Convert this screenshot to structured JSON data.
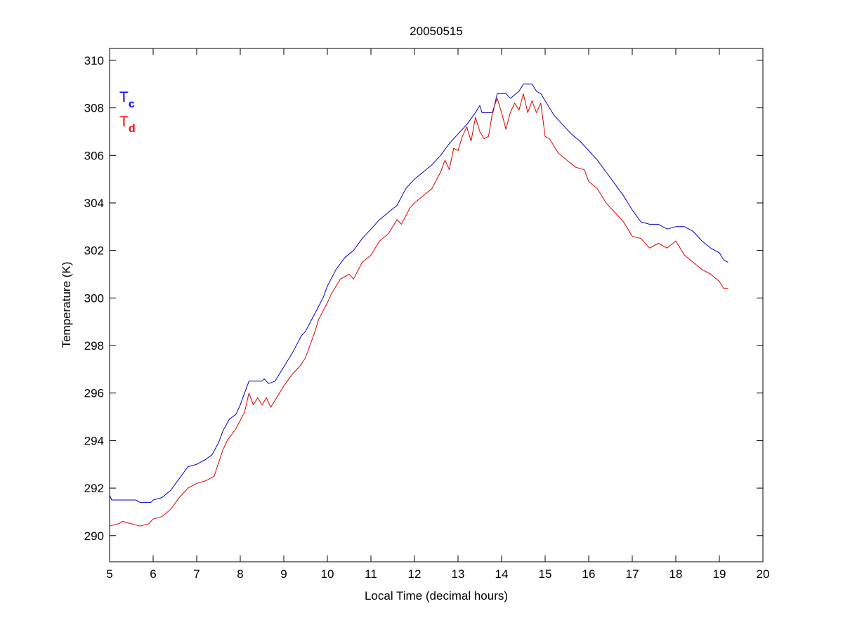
{
  "chart_data": {
    "type": "line",
    "title": "20050515",
    "xlabel": "Local Time (decimal hours)",
    "ylabel": "Temperature (K)",
    "xlim": [
      5,
      20
    ],
    "ylim": [
      288.9,
      310.5
    ],
    "xticks": [
      5,
      6,
      7,
      8,
      9,
      10,
      11,
      12,
      13,
      14,
      15,
      16,
      17,
      18,
      19,
      20
    ],
    "yticks": [
      290,
      292,
      294,
      296,
      298,
      300,
      302,
      304,
      306,
      308,
      310
    ],
    "grid": false,
    "legend": {
      "placement": "top-left",
      "entries": [
        {
          "main": "T",
          "sub": "c",
          "color": "#0000ff"
        },
        {
          "main": "T",
          "sub": "d",
          "color": "#ff0000"
        }
      ]
    },
    "series": [
      {
        "name": "Tc",
        "color": "#0000cc",
        "x": [
          5.0,
          5.05,
          5.3,
          5.6,
          5.7,
          5.95,
          6.0,
          6.2,
          6.4,
          6.6,
          6.8,
          7.0,
          7.2,
          7.35,
          7.5,
          7.6,
          7.75,
          7.9,
          8.0,
          8.1,
          8.2,
          8.35,
          8.5,
          8.55,
          8.65,
          8.8,
          9.0,
          9.2,
          9.4,
          9.5,
          9.7,
          9.9,
          10.0,
          10.2,
          10.4,
          10.6,
          10.8,
          11.0,
          11.2,
          11.4,
          11.6,
          11.8,
          12.0,
          12.2,
          12.4,
          12.6,
          12.8,
          13.0,
          13.2,
          13.4,
          13.5,
          13.55,
          13.8,
          13.9,
          14.1,
          14.2,
          14.4,
          14.5,
          14.7,
          14.8,
          14.9,
          15.0,
          15.2,
          15.4,
          15.6,
          15.8,
          16.0,
          16.2,
          16.4,
          16.6,
          16.8,
          17.0,
          17.2,
          17.4,
          17.6,
          17.8,
          18.0,
          18.2,
          18.4,
          18.6,
          18.8,
          19.0,
          19.1,
          19.2
        ],
        "y": [
          291.7,
          291.5,
          291.5,
          291.5,
          291.4,
          291.4,
          291.5,
          291.6,
          291.9,
          292.4,
          292.9,
          293.0,
          293.2,
          293.4,
          293.9,
          294.4,
          294.9,
          295.1,
          295.5,
          296.0,
          296.5,
          296.5,
          296.5,
          296.6,
          296.4,
          296.5,
          297.1,
          297.7,
          298.4,
          298.6,
          299.3,
          300.0,
          300.5,
          301.2,
          301.7,
          302.0,
          302.5,
          302.9,
          303.3,
          303.6,
          303.9,
          304.6,
          305.0,
          305.3,
          305.6,
          306.0,
          306.5,
          306.9,
          307.3,
          307.8,
          308.1,
          307.8,
          307.8,
          308.6,
          308.6,
          308.4,
          308.7,
          309.0,
          309.0,
          308.7,
          308.6,
          308.3,
          307.7,
          307.3,
          306.9,
          306.6,
          306.2,
          305.8,
          305.3,
          304.8,
          304.3,
          303.7,
          303.2,
          303.1,
          303.1,
          302.9,
          303.0,
          303.0,
          302.8,
          302.4,
          302.1,
          301.9,
          301.6,
          301.5
        ]
      },
      {
        "name": "Td",
        "color": "#dd0000",
        "x": [
          5.0,
          5.2,
          5.3,
          5.5,
          5.7,
          5.9,
          6.0,
          6.2,
          6.4,
          6.6,
          6.8,
          7.0,
          7.2,
          7.4,
          7.6,
          7.7,
          7.9,
          8.1,
          8.2,
          8.3,
          8.4,
          8.5,
          8.6,
          8.7,
          8.9,
          9.0,
          9.2,
          9.4,
          9.5,
          9.7,
          9.8,
          10.0,
          10.1,
          10.3,
          10.5,
          10.6,
          10.8,
          11.0,
          11.2,
          11.4,
          11.6,
          11.7,
          11.9,
          12.0,
          12.2,
          12.4,
          12.6,
          12.7,
          12.8,
          12.9,
          13.0,
          13.1,
          13.2,
          13.3,
          13.4,
          13.5,
          13.6,
          13.7,
          13.8,
          13.9,
          14.0,
          14.1,
          14.2,
          14.3,
          14.4,
          14.5,
          14.6,
          14.7,
          14.8,
          14.9,
          15.0,
          15.1,
          15.3,
          15.5,
          15.7,
          15.9,
          16.0,
          16.2,
          16.4,
          16.6,
          16.8,
          17.0,
          17.2,
          17.4,
          17.6,
          17.8,
          18.0,
          18.2,
          18.4,
          18.6,
          18.8,
          19.0,
          19.1,
          19.2
        ],
        "y": [
          290.4,
          290.5,
          290.6,
          290.5,
          290.4,
          290.5,
          290.7,
          290.8,
          291.1,
          291.6,
          292.0,
          292.2,
          292.3,
          292.5,
          293.6,
          294.0,
          294.5,
          295.2,
          296.0,
          295.5,
          295.8,
          295.5,
          295.8,
          295.4,
          296.0,
          296.3,
          296.8,
          297.2,
          297.5,
          298.5,
          299.1,
          299.8,
          300.2,
          300.8,
          301.0,
          300.8,
          301.5,
          301.8,
          302.4,
          302.7,
          303.3,
          303.1,
          303.8,
          304.0,
          304.3,
          304.6,
          305.3,
          305.8,
          305.4,
          306.3,
          306.2,
          306.8,
          307.2,
          306.6,
          307.6,
          307.0,
          306.7,
          306.8,
          307.9,
          308.4,
          307.8,
          307.1,
          307.8,
          308.2,
          307.9,
          308.6,
          307.8,
          308.3,
          307.8,
          308.2,
          306.8,
          306.7,
          306.1,
          305.8,
          305.5,
          305.4,
          304.9,
          304.6,
          304.0,
          303.6,
          303.2,
          302.6,
          302.5,
          302.1,
          302.3,
          302.1,
          302.4,
          301.8,
          301.5,
          301.2,
          301.0,
          300.7,
          300.4,
          300.4
        ]
      }
    ]
  }
}
